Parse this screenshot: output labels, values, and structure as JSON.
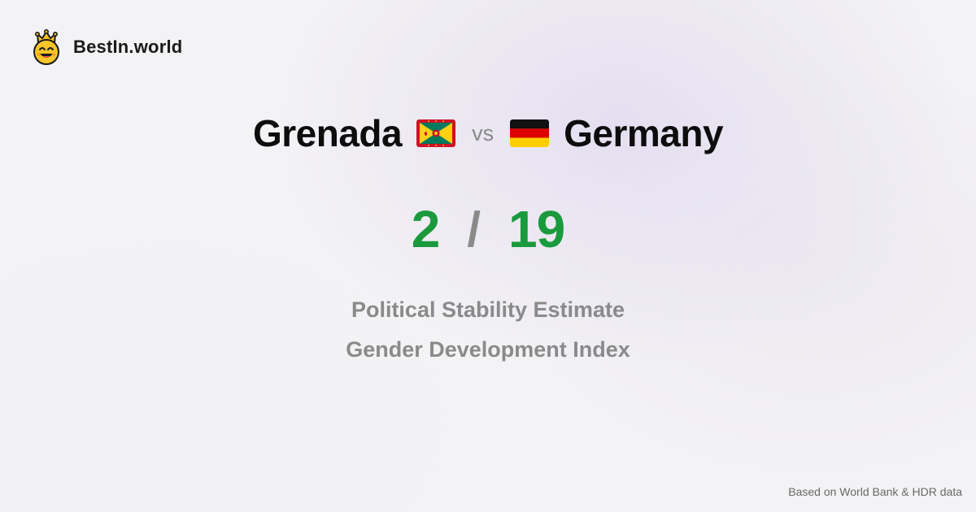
{
  "brand": {
    "name": "BestIn.world",
    "logo_icon": "crown-smiley-icon"
  },
  "comparison": {
    "country_a": "Grenada",
    "country_a_flag": "grenada-flag-icon",
    "vs_label": "vs",
    "country_b": "Germany",
    "country_b_flag": "germany-flag-icon"
  },
  "scores": {
    "a": "2",
    "separator": "/",
    "b": "19"
  },
  "metrics": [
    "Political Stability Estimate",
    "Gender Development Index"
  ],
  "footer": {
    "source": "Based on World Bank & HDR data"
  },
  "colors": {
    "score_green": "#1a9a3c",
    "muted_gray": "#8a8a8a",
    "heading": "#0d0d0d",
    "background": "#f3f2f4"
  }
}
